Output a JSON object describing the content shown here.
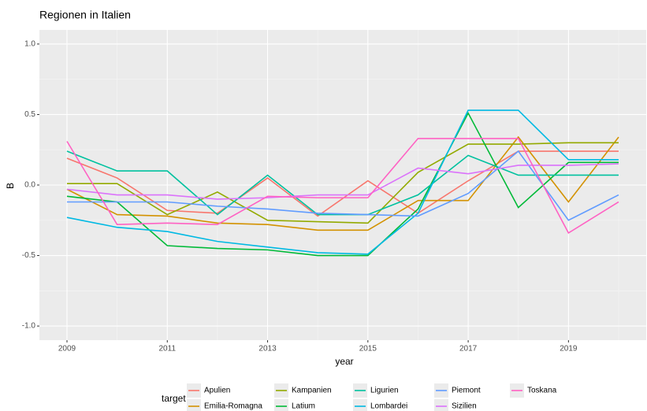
{
  "chart_data": {
    "type": "line",
    "title": "Regionen in Italien",
    "x_label": "year",
    "y_label": "B",
    "x": [
      2009,
      2010,
      2011,
      2012,
      2013,
      2014,
      2015,
      2016,
      2017,
      2018,
      2019,
      2020
    ],
    "xlim": [
      2008.45,
      2020.55
    ],
    "xticks": [
      2009,
      2011,
      2013,
      2015,
      2017,
      2019
    ],
    "xminor": [
      2010,
      2012,
      2014,
      2016,
      2018,
      2020
    ],
    "ylim": [
      -1.1,
      1.1
    ],
    "yticks": [
      {
        "value": -1,
        "label": "-1.0"
      },
      -0.5,
      {
        "value": 0,
        "label": "0.0"
      },
      0.5,
      {
        "value": 1,
        "label": "1.0"
      }
    ],
    "yminor": [
      -0.75,
      -0.25,
      0.25,
      0.75
    ],
    "grid": true,
    "legend_title": "target",
    "legend_position": "bottom",
    "series": [
      {
        "name": "Apulien",
        "color": "#F8766D",
        "values": [
          0.19,
          0.05,
          -0.18,
          -0.2,
          0.05,
          -0.22,
          0.03,
          -0.2,
          0.03,
          0.24,
          0.24,
          0.24
        ]
      },
      {
        "name": "Emilia-Romagna",
        "color": "#D39200",
        "values": [
          -0.03,
          -0.21,
          -0.22,
          -0.27,
          -0.28,
          -0.32,
          -0.32,
          -0.11,
          -0.11,
          0.34,
          -0.12,
          0.34
        ]
      },
      {
        "name": "Kampanien",
        "color": "#93AA00",
        "values": [
          0.01,
          0.01,
          -0.21,
          -0.05,
          -0.25,
          -0.26,
          -0.27,
          0.09,
          0.29,
          0.29,
          0.3,
          0.3
        ]
      },
      {
        "name": "Latium",
        "color": "#00BA38",
        "values": [
          -0.08,
          -0.12,
          -0.43,
          -0.45,
          -0.46,
          -0.5,
          -0.5,
          -0.17,
          0.51,
          -0.16,
          0.16,
          0.16
        ]
      },
      {
        "name": "Ligurien",
        "color": "#00C19F",
        "values": [
          0.24,
          0.1,
          0.1,
          -0.21,
          0.07,
          -0.21,
          -0.21,
          -0.07,
          0.21,
          0.07,
          0.07,
          0.07
        ]
      },
      {
        "name": "Lombardei",
        "color": "#00B9E3",
        "values": [
          -0.23,
          -0.3,
          -0.33,
          -0.4,
          -0.44,
          -0.48,
          -0.49,
          -0.2,
          0.53,
          0.53,
          0.18,
          0.18
        ]
      },
      {
        "name": "Piemont",
        "color": "#619CFF",
        "values": [
          -0.12,
          -0.12,
          -0.12,
          -0.15,
          -0.17,
          -0.2,
          -0.21,
          -0.22,
          -0.06,
          0.24,
          -0.25,
          -0.07
        ]
      },
      {
        "name": "Sizilien",
        "color": "#DB72FB",
        "values": [
          -0.03,
          -0.07,
          -0.07,
          -0.1,
          -0.09,
          -0.07,
          -0.07,
          0.12,
          0.08,
          0.14,
          0.14,
          0.15
        ]
      },
      {
        "name": "Toskana",
        "color": "#FF61C3",
        "values": [
          0.31,
          -0.28,
          -0.27,
          -0.28,
          -0.08,
          -0.09,
          -0.09,
          0.33,
          0.33,
          0.33,
          -0.34,
          -0.12
        ]
      }
    ]
  }
}
